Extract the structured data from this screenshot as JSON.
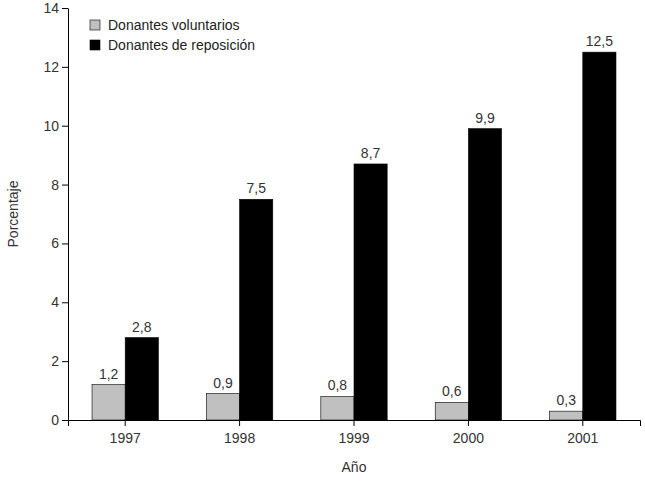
{
  "chart_data": {
    "type": "bar",
    "x_label": "Año",
    "y_label": "Porcentaje",
    "categories": [
      "1997",
      "1998",
      "1999",
      "2000",
      "2001"
    ],
    "series": [
      {
        "name": "Donantes voluntarios",
        "color": "#c0c0c0",
        "values": [
          1.2,
          0.9,
          0.8,
          0.6,
          0.3
        ],
        "value_labels": [
          "1,2",
          "0,9",
          "0,8",
          "0,6",
          "0,3"
        ]
      },
      {
        "name": "Donantes de reposición",
        "color": "#000000",
        "values": [
          2.8,
          7.5,
          8.7,
          9.9,
          12.5
        ],
        "value_labels": [
          "2,8",
          "7,5",
          "8,7",
          "9,9",
          "12,5"
        ]
      }
    ],
    "ylim": [
      0,
      14
    ],
    "yticks": [
      0,
      2,
      4,
      6,
      8,
      10,
      12,
      14
    ],
    "grid": false,
    "legend": "top-left",
    "data_labels": true
  }
}
